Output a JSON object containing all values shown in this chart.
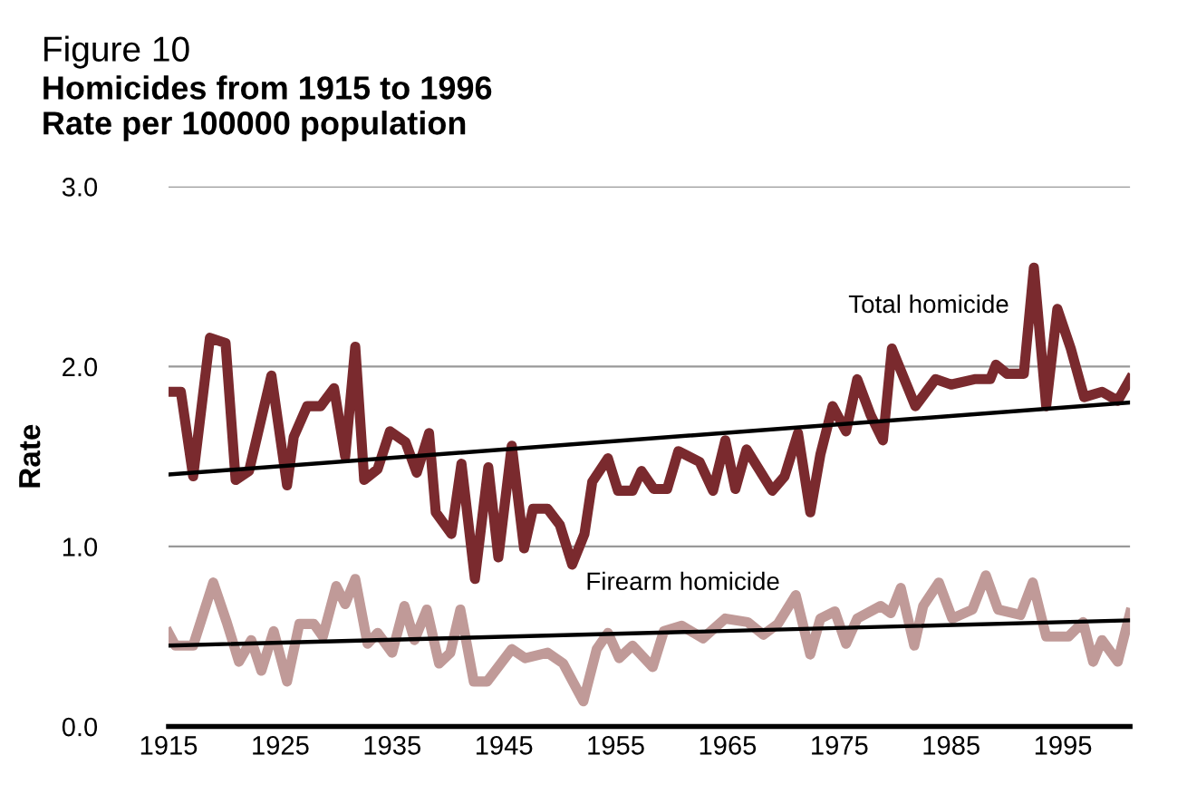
{
  "chart_data": {
    "type": "line",
    "title": "Figure 10",
    "subtitle": "Homicides from 1915 to 1996\nRate per 100000 population",
    "ylabel": "Rate",
    "xlim": [
      1915,
      2001
    ],
    "xticks": [
      1915,
      1925,
      1935,
      1945,
      1955,
      1965,
      1975,
      1985,
      1995
    ],
    "ylim": [
      0,
      3
    ],
    "yticks": [
      {
        "value": 0,
        "label": "0.0"
      },
      {
        "value": 1,
        "label": "1.0"
      },
      {
        "value": 2,
        "label": "2.0"
      },
      {
        "value": 3,
        "label": "3.0"
      }
    ],
    "grid": "y",
    "legend": false,
    "marker": "none",
    "line_style": "solid",
    "series": [
      {
        "name": "Total homicide",
        "color": "#7a2a2e",
        "x": [
          1915,
          1916.1,
          1917.2,
          1918.7,
          1920.1,
          1921,
          1922.2,
          1924.2,
          1925.6,
          1926.2,
          1927.4,
          1928.6,
          1929.8,
          1930.8,
          1931.7,
          1932.5,
          1933.7,
          1934.8,
          1936.2,
          1937.2,
          1938.3,
          1938.9,
          1940.3,
          1941.2,
          1942.4,
          1943.6,
          1944.5,
          1945.7,
          1946.8,
          1947.6,
          1948.9,
          1950,
          1951.1,
          1952.2,
          1952.9,
          1954.3,
          1955.2,
          1956.5,
          1957.3,
          1958.4,
          1959.6,
          1960.6,
          1962.5,
          1963.7,
          1964.8,
          1965.7,
          1966.7,
          1969,
          1970.1,
          1971.3,
          1972.4,
          1973.3,
          1974.4,
          1975.6,
          1976.6,
          1977.8,
          1978.9,
          1979.7,
          1981.8,
          1983.6,
          1985,
          1987.1,
          1988.5,
          1989,
          1990,
          1991.5,
          1992.4,
          1993.5,
          1994.5,
          1995.7,
          1996.9,
          1998.5,
          1999.9,
          2001
        ],
        "values": [
          1.86,
          1.86,
          1.39,
          2.16,
          2.13,
          1.37,
          1.42,
          1.95,
          1.34,
          1.61,
          1.78,
          1.78,
          1.88,
          1.5,
          2.11,
          1.37,
          1.43,
          1.64,
          1.58,
          1.41,
          1.63,
          1.19,
          1.07,
          1.46,
          0.82,
          1.44,
          0.94,
          1.56,
          0.99,
          1.21,
          1.21,
          1.12,
          0.9,
          1.07,
          1.36,
          1.49,
          1.31,
          1.31,
          1.42,
          1.32,
          1.32,
          1.53,
          1.47,
          1.31,
          1.59,
          1.32,
          1.54,
          1.31,
          1.39,
          1.63,
          1.19,
          1.51,
          1.78,
          1.64,
          1.93,
          1.73,
          1.59,
          2.1,
          1.78,
          1.93,
          1.9,
          1.93,
          1.93,
          2.01,
          1.96,
          1.96,
          2.55,
          1.78,
          2.32,
          2.1,
          1.83,
          1.86,
          1.81,
          1.93
        ]
      },
      {
        "name": "Firearm homicide",
        "color": "#c09a98",
        "x": [
          1915,
          1915.6,
          1917.2,
          1919,
          1920.2,
          1921.3,
          1922.4,
          1923.3,
          1924.4,
          1925.6,
          1926.7,
          1928,
          1928.8,
          1930,
          1930.8,
          1931.7,
          1932.8,
          1933.7,
          1935,
          1936.1,
          1937,
          1938.1,
          1939.2,
          1940.2,
          1941.1,
          1942.3,
          1943.5,
          1945.7,
          1946.9,
          1948.9,
          1950.3,
          1952.1,
          1953.3,
          1954.3,
          1955.3,
          1956.5,
          1958.3,
          1959.3,
          1960.9,
          1962.8,
          1964.8,
          1966.8,
          1968.2,
          1969.5,
          1971.1,
          1972.4,
          1973.3,
          1974.6,
          1975.6,
          1976.6,
          1978.7,
          1979.6,
          1980.5,
          1981.7,
          1982.5,
          1983.9,
          1985.1,
          1986.9,
          1988.1,
          1989.2,
          1991.2,
          1992.3,
          1993.5,
          1995.5,
          1996.8,
          1997.7,
          1998.5,
          1999.9,
          2001
        ],
        "values": [
          0.52,
          0.45,
          0.45,
          0.8,
          0.58,
          0.36,
          0.48,
          0.31,
          0.53,
          0.25,
          0.57,
          0.57,
          0.5,
          0.78,
          0.68,
          0.82,
          0.46,
          0.52,
          0.41,
          0.67,
          0.48,
          0.65,
          0.35,
          0.41,
          0.65,
          0.25,
          0.25,
          0.43,
          0.38,
          0.41,
          0.35,
          0.14,
          0.43,
          0.52,
          0.38,
          0.45,
          0.33,
          0.53,
          0.56,
          0.49,
          0.6,
          0.58,
          0.51,
          0.57,
          0.73,
          0.4,
          0.6,
          0.64,
          0.46,
          0.6,
          0.67,
          0.63,
          0.77,
          0.45,
          0.67,
          0.8,
          0.6,
          0.65,
          0.84,
          0.65,
          0.62,
          0.8,
          0.5,
          0.5,
          0.58,
          0.36,
          0.48,
          0.36,
          0.63
        ]
      },
      {
        "color": "#000000",
        "x": [
          1915,
          2001
        ],
        "values": [
          1.4,
          1.8
        ]
      },
      {
        "color": "#000000",
        "x": [
          1915,
          2001
        ],
        "values": [
          0.45,
          0.59
        ]
      }
    ]
  }
}
